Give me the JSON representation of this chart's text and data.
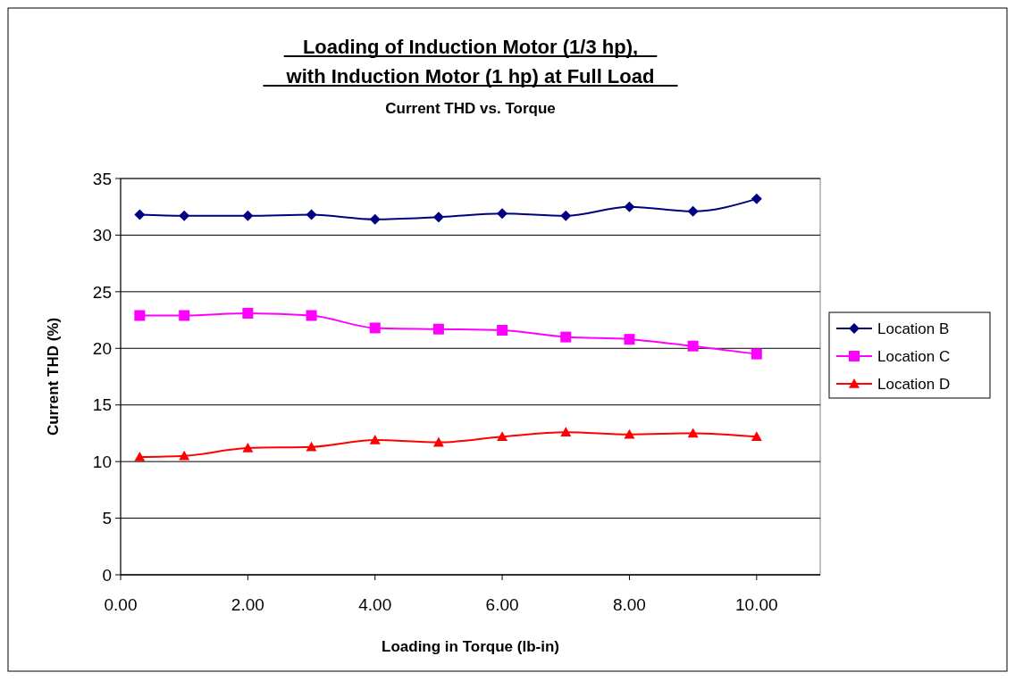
{
  "chart_data": {
    "type": "line",
    "title": "Loading of Induction Motor (1/3 hp), with Induction Motor (1 hp) at Full Load",
    "subtitle": "Current THD vs. Torque",
    "xlabel": "Loading in Torque (lb-in)",
    "ylabel": "Current THD (%)",
    "x": [
      0.3,
      1,
      2,
      3,
      4,
      5,
      6,
      7,
      8,
      9,
      10
    ],
    "series": [
      {
        "name": "Location B",
        "color": "#000080",
        "marker": "diamond",
        "values": [
          31.8,
          31.7,
          31.7,
          31.8,
          31.4,
          31.6,
          31.9,
          31.7,
          32.5,
          32.1,
          33.2
        ]
      },
      {
        "name": "Location C",
        "color": "#ff00ff",
        "marker": "square",
        "values": [
          22.9,
          22.9,
          23.1,
          22.9,
          21.8,
          21.7,
          21.6,
          21.0,
          20.8,
          20.2,
          19.5
        ]
      },
      {
        "name": "Location D",
        "color": "#ff0000",
        "marker": "triangle",
        "values": [
          10.4,
          10.5,
          11.2,
          11.3,
          11.9,
          11.7,
          12.2,
          12.6,
          12.4,
          12.5,
          12.2
        ]
      }
    ],
    "xlim": [
      0,
      11
    ],
    "xticks": [
      {
        "value": 0,
        "label": "0.00"
      },
      {
        "value": 2,
        "label": "2.00"
      },
      {
        "value": 4,
        "label": "4.00"
      },
      {
        "value": 6,
        "label": "6.00"
      },
      {
        "value": 8,
        "label": "8.00"
      },
      {
        "value": 10,
        "label": "10.00"
      }
    ],
    "ylim": [
      0,
      35
    ],
    "yticks": [
      0,
      5,
      10,
      15,
      20,
      25,
      30,
      35
    ],
    "grid": "y",
    "legend": "right"
  }
}
